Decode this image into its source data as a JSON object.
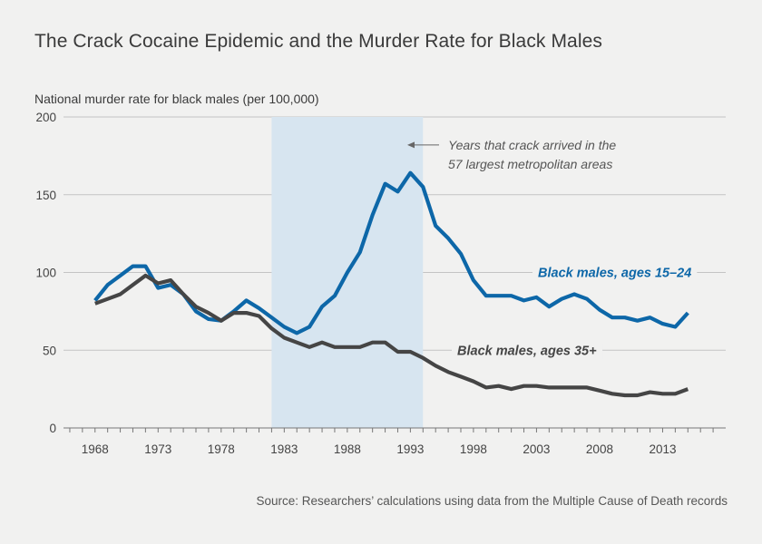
{
  "chart_data": {
    "type": "line",
    "title": "The Crack Cocaine Epidemic and the Murder Rate for Black Males",
    "ylabel": "National murder rate for black males (per 100,000)",
    "source": "Source: Researchers’ calculations using data from the Multiple Cause of Death records",
    "xlim": [
      1965.5,
      2018
    ],
    "ylim": [
      0,
      200
    ],
    "yticks": [
      0,
      50,
      100,
      150,
      200
    ],
    "xticks": [
      1968,
      1973,
      1978,
      1983,
      1988,
      1993,
      1998,
      2003,
      2008,
      2013
    ],
    "grid": true,
    "shaded_region": {
      "x_start": 1982,
      "x_end": 1994,
      "label_line1": "Years that crack arrived in the",
      "label_line2": "57 largest metropolitan areas"
    },
    "x": [
      1968,
      1969,
      1970,
      1971,
      1972,
      1973,
      1974,
      1975,
      1976,
      1977,
      1978,
      1979,
      1980,
      1981,
      1982,
      1983,
      1984,
      1985,
      1986,
      1987,
      1988,
      1989,
      1990,
      1991,
      1992,
      1993,
      1994,
      1995,
      1996,
      1997,
      1998,
      1999,
      2000,
      2001,
      2002,
      2003,
      2004,
      2005,
      2006,
      2007,
      2008,
      2009,
      2010,
      2011,
      2012,
      2013,
      2014,
      2015
    ],
    "series": [
      {
        "name": "Black males, ages 15–24",
        "color": "#0d67a8",
        "values": [
          82,
          92,
          98,
          104,
          104,
          90,
          92,
          86,
          75,
          70,
          69,
          75,
          82,
          77,
          71,
          65,
          61,
          65,
          78,
          85,
          100,
          113,
          137,
          157,
          152,
          164,
          155,
          130,
          122,
          112,
          95,
          85,
          85,
          85,
          82,
          84,
          78,
          83,
          86,
          83,
          76,
          71,
          71,
          69,
          71,
          67,
          65,
          74
        ]
      },
      {
        "name": "Black males, ages 35+",
        "color": "#454545",
        "values": [
          80,
          83,
          86,
          92,
          98,
          93,
          95,
          86,
          78,
          74,
          69,
          74,
          74,
          72,
          64,
          58,
          55,
          52,
          55,
          52,
          52,
          52,
          55,
          55,
          49,
          49,
          45,
          40,
          36,
          33,
          30,
          26,
          27,
          25,
          27,
          27,
          26,
          26,
          26,
          26,
          24,
          22,
          21,
          21,
          23,
          22,
          22,
          25
        ]
      }
    ]
  }
}
